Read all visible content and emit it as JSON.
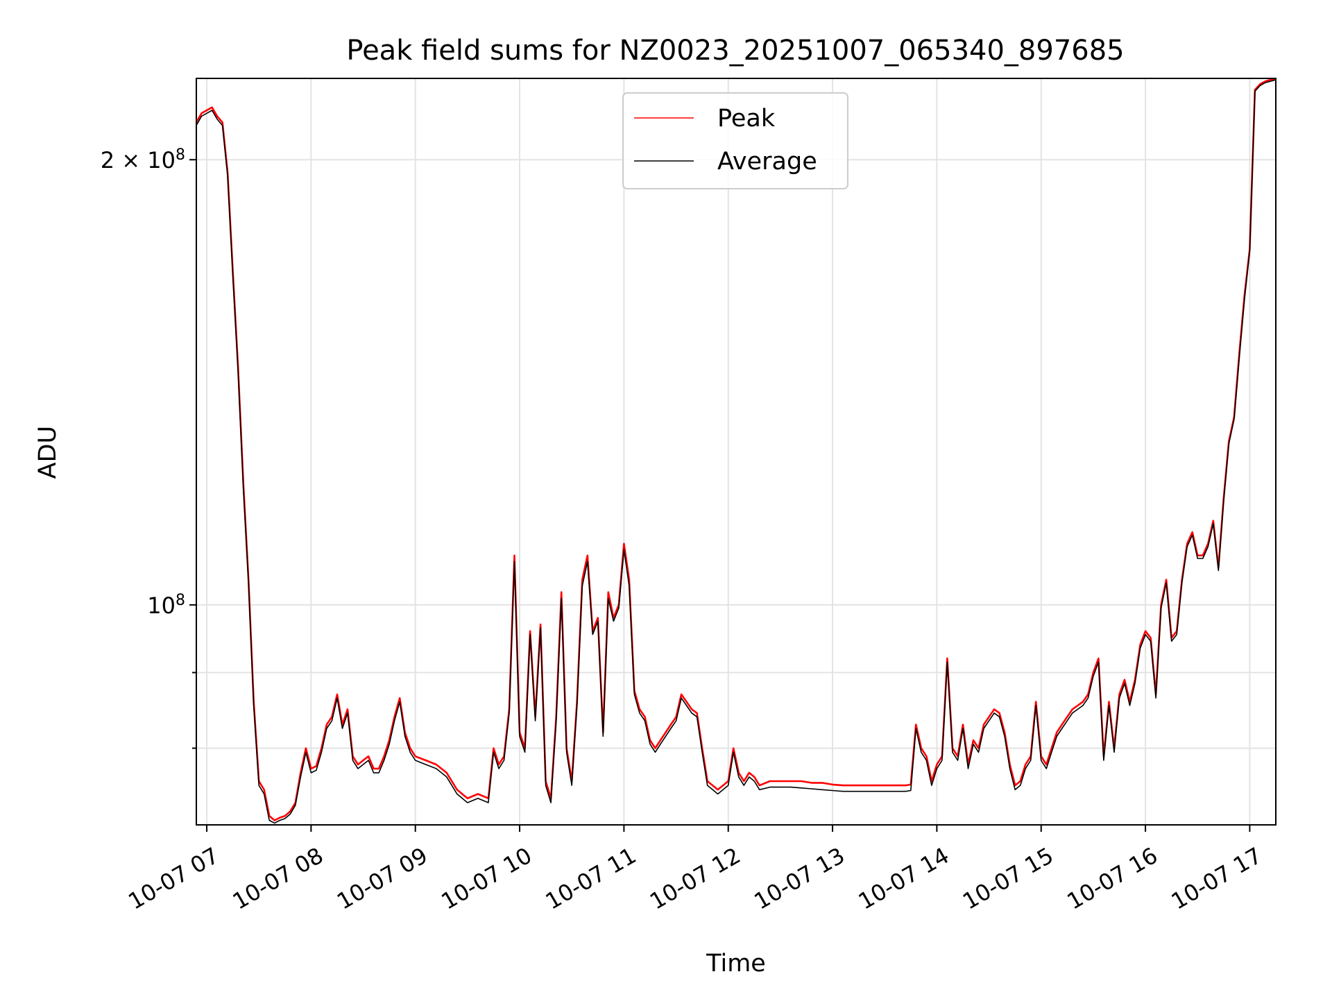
{
  "chart_data": {
    "type": "line",
    "title": "Peak field sums for NZ0023_20251007_065340_897685",
    "xlabel": "Time",
    "ylabel": "ADU",
    "yscale": "log",
    "ylim": [
      71000000,
      227000000
    ],
    "xlim": [
      6.9,
      17.25
    ],
    "grid": true,
    "legend_position": "top-center",
    "x_ticks": [
      {
        "value": 7,
        "label": "10-07 07"
      },
      {
        "value": 8,
        "label": "10-07 08"
      },
      {
        "value": 9,
        "label": "10-07 09"
      },
      {
        "value": 10,
        "label": "10-07 10"
      },
      {
        "value": 11,
        "label": "10-07 11"
      },
      {
        "value": 12,
        "label": "10-07 12"
      },
      {
        "value": 13,
        "label": "10-07 13"
      },
      {
        "value": 14,
        "label": "10-07 14"
      },
      {
        "value": 15,
        "label": "10-07 15"
      },
      {
        "value": 16,
        "label": "10-07 16"
      },
      {
        "value": 17,
        "label": "10-07 17"
      }
    ],
    "y_major_ticks": [
      {
        "value": 100000000,
        "base": "10",
        "exp": "8"
      },
      {
        "value": 200000000,
        "coef": "2 × ",
        "base": "10",
        "exp": "8"
      }
    ],
    "y_minor_ticks": [
      80000000,
      90000000
    ],
    "x": [
      6.9,
      6.95,
      7.0,
      7.05,
      7.1,
      7.15,
      7.2,
      7.25,
      7.3,
      7.35,
      7.4,
      7.45,
      7.5,
      7.55,
      7.6,
      7.65,
      7.7,
      7.75,
      7.8,
      7.85,
      7.9,
      7.95,
      8.0,
      8.05,
      8.1,
      8.15,
      8.2,
      8.25,
      8.3,
      8.35,
      8.4,
      8.45,
      8.5,
      8.55,
      8.6,
      8.65,
      8.7,
      8.75,
      8.8,
      8.85,
      8.9,
      8.95,
      9.0,
      9.1,
      9.2,
      9.3,
      9.4,
      9.5,
      9.6,
      9.7,
      9.75,
      9.8,
      9.85,
      9.9,
      9.95,
      10.0,
      10.05,
      10.1,
      10.15,
      10.2,
      10.25,
      10.3,
      10.35,
      10.4,
      10.45,
      10.5,
      10.55,
      10.6,
      10.65,
      10.7,
      10.75,
      10.8,
      10.85,
      10.9,
      10.95,
      11.0,
      11.05,
      11.1,
      11.15,
      11.2,
      11.25,
      11.3,
      11.35,
      11.4,
      11.45,
      11.5,
      11.55,
      11.6,
      11.65,
      11.7,
      11.75,
      11.8,
      11.85,
      11.9,
      11.95,
      12.0,
      12.05,
      12.1,
      12.15,
      12.2,
      12.25,
      12.3,
      12.4,
      12.5,
      12.6,
      12.7,
      12.8,
      12.9,
      13.0,
      13.1,
      13.2,
      13.3,
      13.4,
      13.5,
      13.6,
      13.7,
      13.75,
      13.8,
      13.85,
      13.9,
      13.95,
      14.0,
      14.05,
      14.1,
      14.15,
      14.2,
      14.25,
      14.3,
      14.35,
      14.4,
      14.45,
      14.5,
      14.55,
      14.6,
      14.65,
      14.7,
      14.75,
      14.8,
      14.85,
      14.9,
      14.95,
      15.0,
      15.05,
      15.1,
      15.15,
      15.2,
      15.25,
      15.3,
      15.35,
      15.4,
      15.45,
      15.5,
      15.55,
      15.6,
      15.65,
      15.7,
      15.75,
      15.8,
      15.85,
      15.9,
      15.95,
      16.0,
      16.05,
      16.1,
      16.15,
      16.2,
      16.25,
      16.3,
      16.35,
      16.4,
      16.45,
      16.5,
      16.55,
      16.6,
      16.65,
      16.7,
      16.75,
      16.8,
      16.85,
      16.9,
      16.95,
      17.0,
      17.05,
      17.1,
      17.15,
      17.25
    ],
    "series": [
      {
        "name": "Peak",
        "color": "#ff0000",
        "values": [
          212000000,
          215000000,
          216000000,
          217000000,
          214000000,
          212000000,
          196000000,
          168000000,
          145000000,
          121000000,
          104000000,
          86000000,
          76000000,
          75000000,
          72000000,
          71500000,
          71800000,
          72000000,
          72500000,
          73500000,
          77000000,
          80000000,
          77500000,
          77800000,
          80000000,
          83000000,
          84000000,
          87000000,
          83000000,
          85000000,
          79000000,
          78000000,
          78500000,
          79000000,
          77500000,
          77500000,
          79000000,
          81000000,
          84000000,
          86500000,
          82000000,
          80000000,
          79000000,
          78500000,
          78000000,
          77000000,
          75000000,
          74000000,
          74500000,
          74000000,
          80000000,
          78000000,
          79000000,
          85000000,
          108000000,
          82000000,
          80000000,
          96000000,
          84000000,
          97000000,
          76000000,
          74000000,
          84000000,
          102000000,
          80000000,
          76000000,
          86000000,
          104000000,
          108000000,
          96000000,
          98000000,
          82000000,
          102000000,
          98000000,
          100000000,
          110000000,
          104000000,
          87500000,
          85000000,
          84000000,
          81000000,
          80000000,
          81000000,
          82000000,
          83000000,
          84000000,
          87000000,
          86000000,
          85000000,
          84500000,
          80000000,
          76000000,
          75500000,
          75000000,
          75500000,
          76000000,
          80000000,
          77000000,
          76000000,
          77000000,
          76500000,
          75500000,
          76000000,
          76000000,
          76000000,
          76000000,
          75800000,
          75800000,
          75600000,
          75500000,
          75500000,
          75500000,
          75500000,
          75500000,
          75500000,
          75500000,
          75600000,
          83000000,
          80000000,
          79000000,
          76000000,
          78000000,
          79000000,
          92000000,
          80000000,
          79000000,
          83000000,
          78000000,
          81000000,
          80000000,
          83000000,
          84000000,
          85000000,
          84500000,
          82000000,
          78000000,
          75500000,
          76000000,
          78000000,
          79000000,
          86000000,
          79000000,
          78000000,
          80000000,
          82000000,
          83000000,
          84000000,
          85000000,
          85500000,
          86000000,
          87000000,
          90000000,
          92000000,
          79000000,
          86000000,
          80000000,
          87000000,
          89000000,
          86000000,
          89000000,
          94000000,
          96000000,
          95000000,
          87000000,
          100000000,
          104000000,
          95000000,
          96000000,
          104000000,
          110000000,
          112000000,
          108000000,
          108000000,
          110000000,
          114000000,
          106000000,
          118000000,
          129000000,
          134000000,
          148000000,
          162000000,
          174000000,
          223000000,
          225000000,
          226000000,
          227000000
        ]
      },
      {
        "name": "Average",
        "color": "#000000",
        "values": [
          211000000,
          214000000,
          215000000,
          216000000,
          213000000,
          211000000,
          195000000,
          167000000,
          144000000,
          120000000,
          103500000,
          85500000,
          75500000,
          74500000,
          71500000,
          71200000,
          71500000,
          71700000,
          72200000,
          73200000,
          76500000,
          79500000,
          77000000,
          77300000,
          79500000,
          82500000,
          83500000,
          86500000,
          82500000,
          84500000,
          78500000,
          77500000,
          78000000,
          78500000,
          77000000,
          77000000,
          78500000,
          80500000,
          83500000,
          86000000,
          81500000,
          79500000,
          78500000,
          78000000,
          77500000,
          76500000,
          74500000,
          73500000,
          74000000,
          73500000,
          79500000,
          77500000,
          78500000,
          84500000,
          107000000,
          81500000,
          79500000,
          95500000,
          83500000,
          96500000,
          75500000,
          73500000,
          83500000,
          101000000,
          79500000,
          75500000,
          85500000,
          103000000,
          107000000,
          95500000,
          97500000,
          81500000,
          101000000,
          97500000,
          99500000,
          109000000,
          103000000,
          87000000,
          84500000,
          83500000,
          80500000,
          79500000,
          80500000,
          81500000,
          82500000,
          83500000,
          86500000,
          85500000,
          84500000,
          84000000,
          79500000,
          75500000,
          75000000,
          74500000,
          75000000,
          75500000,
          79500000,
          76500000,
          75500000,
          76500000,
          76000000,
          75000000,
          75300000,
          75300000,
          75300000,
          75200000,
          75100000,
          75000000,
          74900000,
          74800000,
          74800000,
          74800000,
          74800000,
          74800000,
          74800000,
          74800000,
          74900000,
          82500000,
          79500000,
          78500000,
          75500000,
          77500000,
          78500000,
          91500000,
          79500000,
          78500000,
          82500000,
          77500000,
          80500000,
          79500000,
          82500000,
          83500000,
          84500000,
          84000000,
          81500000,
          77500000,
          75000000,
          75500000,
          77500000,
          78500000,
          85500000,
          78500000,
          77500000,
          79500000,
          81500000,
          82500000,
          83500000,
          84500000,
          85000000,
          85500000,
          86500000,
          89500000,
          91500000,
          78500000,
          85500000,
          79500000,
          86500000,
          88500000,
          85500000,
          88500000,
          93500000,
          95500000,
          94500000,
          86500000,
          99500000,
          103500000,
          94500000,
          95500000,
          103500000,
          109500000,
          111500000,
          107500000,
          107500000,
          109500000,
          113500000,
          105500000,
          117500000,
          128500000,
          133500000,
          147000000,
          161000000,
          173500000,
          222500000,
          224500000,
          225500000,
          226500000
        ]
      }
    ]
  }
}
